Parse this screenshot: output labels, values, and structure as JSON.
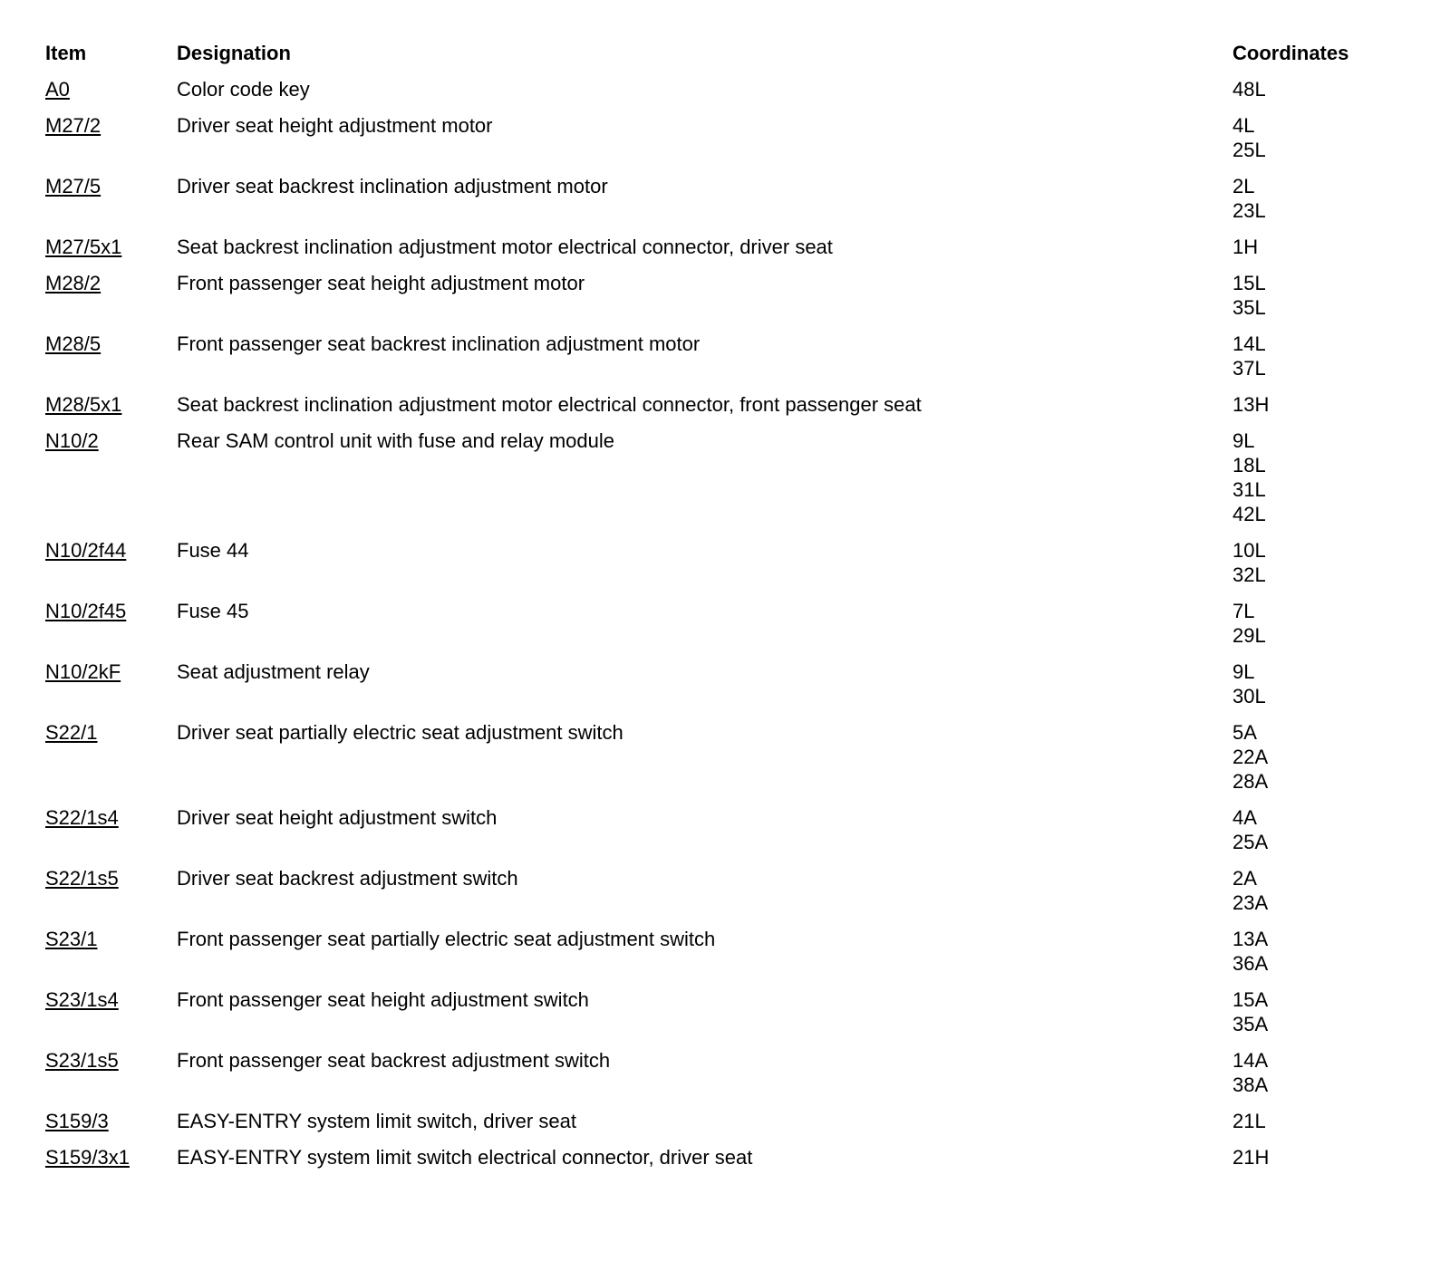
{
  "colors": {
    "text": "#000000",
    "background": "#ffffff"
  },
  "table": {
    "headers": {
      "item": "Item",
      "designation": "Designation",
      "coordinates": "Coordinates"
    },
    "rows": [
      {
        "item": "A0",
        "designation": "Color code key",
        "coordinates": [
          "48L"
        ]
      },
      {
        "item": "M27/2",
        "designation": "Driver seat height adjustment motor",
        "coordinates": [
          "4L",
          "25L"
        ]
      },
      {
        "item": "M27/5",
        "designation": "Driver seat backrest inclination adjustment motor",
        "coordinates": [
          "2L",
          "23L"
        ]
      },
      {
        "item": "M27/5x1",
        "designation": "Seat backrest inclination adjustment motor electrical connector, driver seat",
        "coordinates": [
          "1H"
        ]
      },
      {
        "item": "M28/2",
        "designation": "Front passenger seat height adjustment motor",
        "coordinates": [
          "15L",
          "35L"
        ]
      },
      {
        "item": "M28/5",
        "designation": "Front passenger seat backrest inclination adjustment motor",
        "coordinates": [
          "14L",
          "37L"
        ]
      },
      {
        "item": "M28/5x1",
        "designation": "Seat backrest inclination adjustment motor electrical connector, front passenger seat",
        "coordinates": [
          "13H"
        ]
      },
      {
        "item": "N10/2",
        "designation": "Rear SAM control unit with fuse and relay module",
        "coordinates": [
          "9L",
          "18L",
          "31L",
          "42L"
        ]
      },
      {
        "item": "N10/2f44",
        "designation": "Fuse 44",
        "coordinates": [
          "10L",
          "32L"
        ]
      },
      {
        "item": "N10/2f45",
        "designation": "Fuse 45",
        "coordinates": [
          "7L",
          "29L"
        ]
      },
      {
        "item": "N10/2kF",
        "designation": "Seat adjustment relay",
        "coordinates": [
          "9L",
          "30L"
        ]
      },
      {
        "item": "S22/1",
        "designation": "Driver seat partially electric seat adjustment switch",
        "coordinates": [
          "5A",
          "22A",
          "28A"
        ]
      },
      {
        "item": "S22/1s4",
        "designation": "Driver seat height adjustment switch",
        "coordinates": [
          "4A",
          "25A"
        ]
      },
      {
        "item": "S22/1s5",
        "designation": "Driver seat backrest adjustment switch",
        "coordinates": [
          "2A",
          "23A"
        ]
      },
      {
        "item": "S23/1",
        "designation": "Front passenger seat partially electric seat adjustment switch",
        "coordinates": [
          "13A",
          "36A"
        ]
      },
      {
        "item": "S23/1s4",
        "designation": "Front passenger seat height adjustment switch",
        "coordinates": [
          "15A",
          "35A"
        ]
      },
      {
        "item": "S23/1s5",
        "designation": "Front passenger seat backrest adjustment switch",
        "coordinates": [
          "14A",
          "38A"
        ]
      },
      {
        "item": "S159/3",
        "designation": "EASY-ENTRY system limit switch, driver seat",
        "coordinates": [
          "21L"
        ]
      },
      {
        "item": "S159/3x1",
        "designation": "EASY-ENTRY system limit switch electrical connector, driver seat",
        "coordinates": [
          "21H"
        ]
      }
    ]
  }
}
